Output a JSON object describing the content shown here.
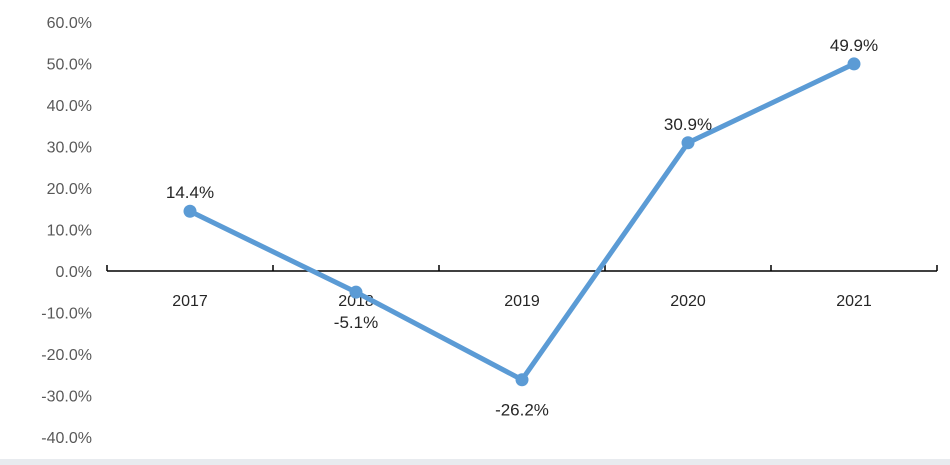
{
  "chart_data": {
    "type": "line",
    "categories": [
      "2017",
      "2018",
      "2019",
      "2020",
      "2021"
    ],
    "series": [
      {
        "values": [
          14.4,
          -5.1,
          -26.2,
          30.9,
          49.9
        ],
        "color": "#5b9bd5"
      }
    ],
    "data_labels": [
      "14.4%",
      "-5.1%",
      "-26.2%",
      "30.9%",
      "49.9%"
    ],
    "y_ticks": [
      "60.0%",
      "50.0%",
      "40.0%",
      "30.0%",
      "20.0%",
      "10.0%",
      "0.0%",
      "-10.0%",
      "-20.0%",
      "-30.0%",
      "-40.0%"
    ],
    "ylim": [
      -40,
      60
    ],
    "title": "",
    "xlabel": "",
    "ylabel": "",
    "grid": false,
    "legend": "none",
    "axis_color": "#000000"
  }
}
